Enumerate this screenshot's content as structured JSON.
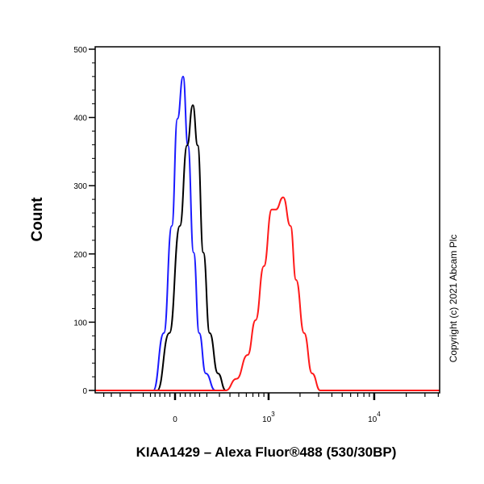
{
  "chart_data": {
    "type": "line",
    "title": "",
    "xlabel": "KIAA1429 – Alexa Fluor®488 (530/30BP)",
    "ylabel": "Count",
    "x_scale": "biexponential",
    "xlim": [
      -730,
      41000
    ],
    "ylim": [
      0,
      500
    ],
    "yticks": [
      0,
      100,
      200,
      300,
      400,
      500
    ],
    "xticks": [
      {
        "value": 0,
        "label": "0"
      },
      {
        "value": 1000,
        "base": "10",
        "exp": "3"
      },
      {
        "value": 10000,
        "base": "10",
        "exp": "4"
      }
    ],
    "grid": false,
    "annotation": "Copyright (c) 2021 Abcam Plc",
    "series": [
      {
        "color": "#1a1aff",
        "points": [
          [
            -131,
            0
          ],
          [
            -66,
            84
          ],
          [
            -19,
            241
          ],
          [
            14,
            398
          ],
          [
            47,
            460
          ],
          [
            76,
            359
          ],
          [
            111,
            202
          ],
          [
            147,
            84
          ],
          [
            192,
            25
          ],
          [
            265,
            0
          ]
        ]
      },
      {
        "color": "#000000",
        "points": [
          [
            -106,
            0
          ],
          [
            -33,
            84
          ],
          [
            28,
            241
          ],
          [
            71,
            359
          ],
          [
            106,
            418
          ],
          [
            137,
            359
          ],
          [
            175,
            202
          ],
          [
            221,
            84
          ],
          [
            287,
            25
          ],
          [
            358,
            0
          ]
        ]
      },
      {
        "color": "#ff1a1a",
        "points": [
          [
            -730,
            0
          ],
          [
            358,
            0
          ],
          [
            473,
            17
          ],
          [
            619,
            52
          ],
          [
            745,
            103
          ],
          [
            899,
            182
          ],
          [
            1073,
            265
          ],
          [
            1175,
            265
          ],
          [
            1383,
            283
          ],
          [
            1622,
            241
          ],
          [
            1835,
            162
          ],
          [
            2187,
            84
          ],
          [
            2601,
            25
          ],
          [
            3107,
            0
          ],
          [
            41000,
            0
          ]
        ]
      }
    ]
  }
}
